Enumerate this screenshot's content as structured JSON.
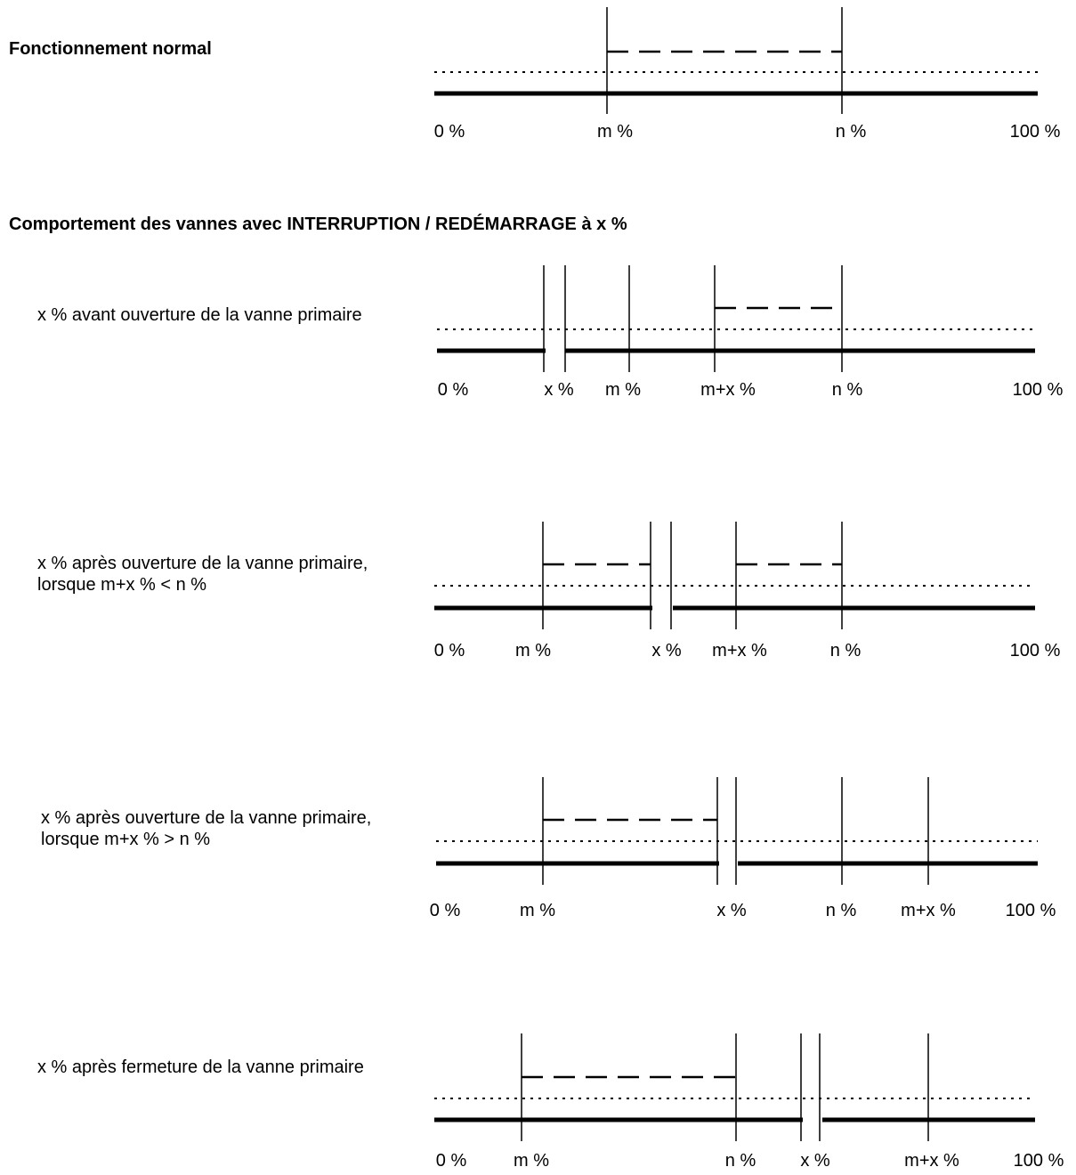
{
  "heading_normal": "Fonctionnement normal",
  "heading_interrupt": "Comportement des vannes avec INTERRUPTION / REDÉMARRAGE à x %",
  "cases": [
    {
      "id": "normal",
      "caption": "",
      "labels": [
        "0 %",
        "m %",
        "n %",
        "100 %"
      ]
    },
    {
      "id": "before-open",
      "caption": "x % avant ouverture de la vanne primaire",
      "labels": [
        "0 %",
        "x %",
        "m %",
        "m+x %",
        "n %",
        "100 %"
      ]
    },
    {
      "id": "after-open-lt",
      "caption": "x % après ouverture de la vanne primaire, lorsque m+x % < n %",
      "labels": [
        "0 %",
        "m %",
        "x %",
        "m+x %",
        "n %",
        "100 %"
      ]
    },
    {
      "id": "after-open-gt",
      "caption": "x % après ouverture de la vanne primaire, lorsque m+x % > n %",
      "labels": [
        "0 %",
        "m %",
        "x %",
        "n %",
        "m+x %",
        "100 %"
      ]
    },
    {
      "id": "after-close",
      "caption": "x % après fermeture de la vanne primaire",
      "labels": [
        "0 %",
        "m %",
        "n %",
        "x %",
        "m+x %",
        "100 %"
      ]
    }
  ]
}
